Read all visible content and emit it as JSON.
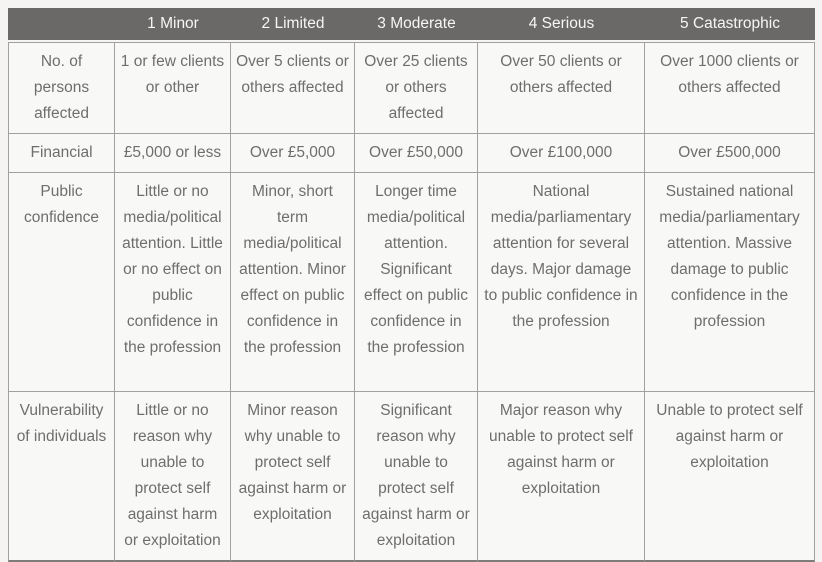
{
  "table": {
    "title": "risk-impact-matrix",
    "header": {
      "corner": "",
      "columns": [
        "1 Minor",
        "2 Limited",
        "3 Moderate",
        "4 Serious",
        "5 Catastrophic"
      ]
    },
    "rows": [
      {
        "label": "No. of persons affected",
        "cells": [
          "1 or few clients or other",
          "Over 5 clients or others affected",
          "Over 25 clients or others affected",
          "Over 50 clients or others affected",
          "Over 1000 clients or others affected"
        ]
      },
      {
        "label": "Financial",
        "cells": [
          "£5,000 or less",
          "Over £5,000",
          "Over £50,000",
          "Over £100,000",
          "Over £500,000"
        ]
      },
      {
        "label": "Public confidence",
        "cells": [
          "Little or no media/political attention. Little or no effect on public confidence in the profession",
          "Minor, short term media/political attention. Minor effect on public confidence in the profession",
          "Longer time media/political attention. Significant effect on public confidence in the profession",
          "National media/parliamentary attention for several days. Major damage to public confidence in the profession",
          "Sustained national media/parliamentary attention. Massive damage to public confidence in the profession"
        ]
      },
      {
        "label": "Vulnerability of individuals",
        "cells": [
          "Little or no reason why unable to protect self against harm or exploitation",
          "Minor reason why unable to protect self against harm or exploitation",
          "Significant reason why unable to protect self against harm or exploitation",
          "Major reason why unable to protect self against harm or exploitation",
          "Unable to protect self against harm or exploitation"
        ]
      }
    ],
    "colors": {
      "header_bg": "#6b6967",
      "header_text": "#f7f6f4",
      "cell_bg": "#f8f8f7",
      "body_text": "#6f6e6c",
      "border": "#a3a1a0",
      "bottom_border": "#7e7c7a",
      "page_bg": "#f5f4f2"
    }
  }
}
